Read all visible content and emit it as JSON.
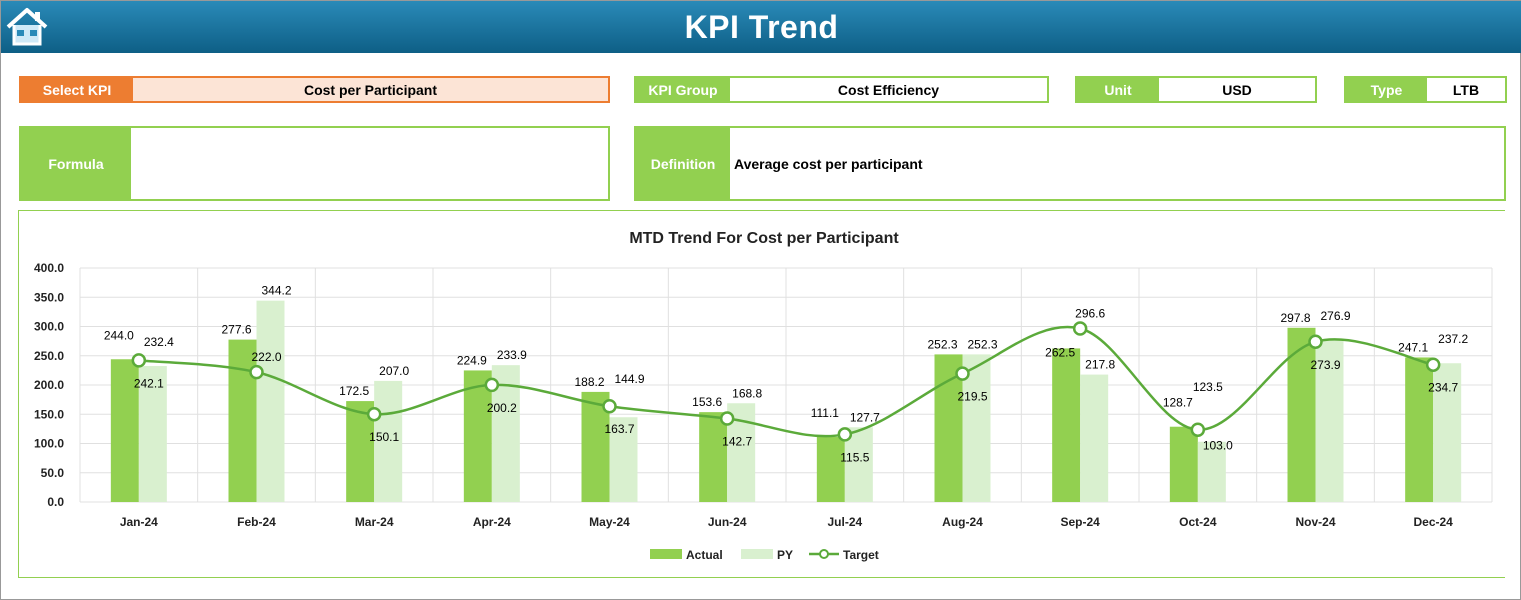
{
  "header": {
    "title": "KPI Trend",
    "home_icon": "home-icon"
  },
  "select_kpi": {
    "label": "Select KPI",
    "value": "Cost per Participant"
  },
  "kpi_group": {
    "label": "KPI Group",
    "value": "Cost Efficiency"
  },
  "unit": {
    "label": "Unit",
    "value": "USD"
  },
  "type": {
    "label": "Type",
    "value": "LTB"
  },
  "formula": {
    "label": "Formula",
    "value": ""
  },
  "definition": {
    "label": "Definition",
    "value": "Average cost per participant"
  },
  "colors": {
    "header": "#1a78a6",
    "accent_orange": "#ED7D31",
    "green": "#92D050",
    "py": "#D9F0CF",
    "target": "#5BAA3A"
  },
  "chart_data": {
    "type": "bar",
    "title": "MTD Trend For Cost per Participant",
    "categories": [
      "Jan-24",
      "Feb-24",
      "Mar-24",
      "Apr-24",
      "May-24",
      "Jun-24",
      "Jul-24",
      "Aug-24",
      "Sep-24",
      "Oct-24",
      "Nov-24",
      "Dec-24"
    ],
    "ylim": [
      0,
      400
    ],
    "yticks": [
      "0.0",
      "50.0",
      "100.0",
      "150.0",
      "200.0",
      "250.0",
      "300.0",
      "350.0",
      "400.0"
    ],
    "grid": true,
    "legend": "bottom",
    "series": [
      {
        "name": "Actual",
        "type": "bar",
        "values": [
          244.0,
          277.6,
          172.5,
          224.9,
          188.2,
          153.6,
          111.1,
          252.3,
          262.5,
          128.7,
          297.8,
          247.1
        ]
      },
      {
        "name": "PY",
        "type": "bar",
        "values": [
          232.4,
          344.2,
          207.0,
          233.9,
          144.9,
          168.8,
          127.7,
          252.3,
          217.8,
          103.0,
          276.9,
          237.2
        ]
      },
      {
        "name": "Target",
        "type": "line",
        "values": [
          242.1,
          222.0,
          150.1,
          200.2,
          163.7,
          142.7,
          115.5,
          219.5,
          296.6,
          123.5,
          273.9,
          234.7
        ]
      }
    ]
  }
}
